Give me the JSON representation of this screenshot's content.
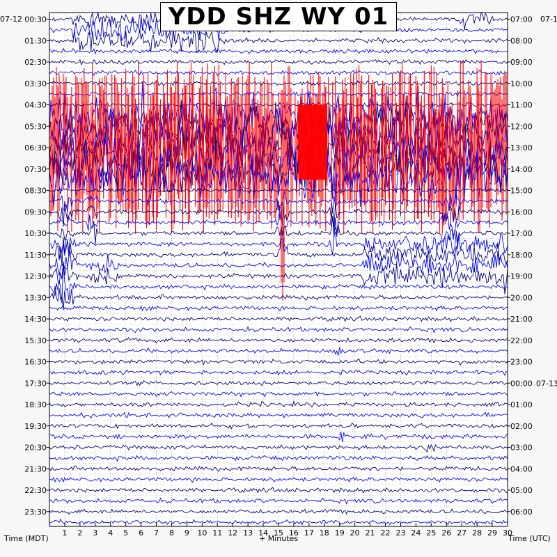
{
  "chart_data": {
    "type": "line",
    "chart_kind": "helicorder",
    "title": "YDD SHZ WY 01",
    "xlabel": "+ Minutes",
    "xlim": [
      0,
      30
    ],
    "x_ticks": [
      "1",
      "2",
      "3",
      "4",
      "5",
      "6",
      "7",
      "8",
      "9",
      "10",
      "11",
      "12",
      "13",
      "14",
      "15",
      "16",
      "17",
      "18",
      "19",
      "20",
      "21",
      "22",
      "23",
      "24",
      "25",
      "26",
      "27",
      "28",
      "29",
      "30"
    ],
    "left_axis_label": "Time (MDT)",
    "right_axis_label": "Time (UTC)",
    "left_date": "07-12",
    "right_date_start": "07-1",
    "right_date_change": "07-13",
    "left_ticks": [
      "00:30",
      "01:30",
      "02:30",
      "03:30",
      "04:30",
      "05:30",
      "06:30",
      "07:30",
      "08:30",
      "09:30",
      "10:30",
      "11:30",
      "12:30",
      "13:30",
      "14:30",
      "15:30",
      "16:30",
      "17:30",
      "18:30",
      "19:30",
      "20:30",
      "21:30",
      "22:30",
      "23:30"
    ],
    "right_ticks": [
      "07:00",
      "08:00",
      "09:00",
      "10:00",
      "11:00",
      "12:00",
      "13:00",
      "14:00",
      "15:00",
      "16:00",
      "17:00",
      "18:00",
      "19:00",
      "20:00",
      "21:00",
      "22:00",
      "23:00",
      "00:00",
      "01:00",
      "02:00",
      "03:00",
      "04:00",
      "05:00",
      "06:00"
    ],
    "trace_count": 48,
    "trace_interval_minutes": 30,
    "trace_colors": [
      "#000080",
      "#0000ff"
    ],
    "clip_color": "#ff0000",
    "grid": true,
    "events": [
      {
        "trace_start": 0,
        "trace_end": 2,
        "minute_start": 1.5,
        "minute_end": 11.5,
        "amp": 1.6,
        "clipped": true
      },
      {
        "trace_start": 0,
        "trace_end": 0,
        "minute_start": 26.5,
        "minute_end": 30,
        "amp": 1.3,
        "clipped": false
      },
      {
        "trace_start": 9,
        "trace_end": 15,
        "minute_start": 0,
        "minute_end": 30,
        "amp": 3.5,
        "clipped": true
      },
      {
        "trace_start": 10,
        "trace_end": 15,
        "minute_start": 16.3,
        "minute_end": 18.2,
        "amp": 4.0,
        "clipped": true
      },
      {
        "trace_start": 17,
        "trace_end": 20,
        "minute_start": 0.5,
        "minute_end": 2.0,
        "amp": 1.8,
        "clipped": false
      },
      {
        "trace_start": 17,
        "trace_end": 20,
        "minute_start": 2.3,
        "minute_end": 3.5,
        "amp": 2.0,
        "clipped": true
      },
      {
        "trace_start": 17,
        "trace_end": 22,
        "minute_start": 14.8,
        "minute_end": 16.0,
        "amp": 2.5,
        "clipped": true
      },
      {
        "trace_start": 17,
        "trace_end": 21,
        "minute_start": 18.3,
        "minute_end": 19.2,
        "amp": 2.0,
        "clipped": true
      },
      {
        "trace_start": 17,
        "trace_end": 20,
        "minute_start": 25.5,
        "minute_end": 27.5,
        "amp": 1.8,
        "clipped": false
      },
      {
        "trace_start": 21,
        "trace_end": 24,
        "minute_start": 20.5,
        "minute_end": 30,
        "amp": 1.6,
        "clipped": false
      },
      {
        "trace_start": 21,
        "trace_end": 26,
        "minute_start": 0,
        "minute_end": 2.5,
        "amp": 2.0,
        "clipped": true
      },
      {
        "trace_start": 23,
        "trace_end": 24,
        "minute_start": 2.5,
        "minute_end": 5.5,
        "amp": 1.0,
        "clipped": false
      },
      {
        "trace_start": 31,
        "trace_end": 31,
        "minute_start": 18.5,
        "minute_end": 19.5,
        "amp": 0.9,
        "clipped": false
      },
      {
        "trace_start": 39,
        "trace_end": 39,
        "minute_start": 18.5,
        "minute_end": 20.0,
        "amp": 0.7,
        "clipped": false
      },
      {
        "trace_start": 40,
        "trace_end": 40,
        "minute_start": 24.5,
        "minute_end": 25.5,
        "amp": 0.6,
        "clipped": false
      }
    ]
  }
}
